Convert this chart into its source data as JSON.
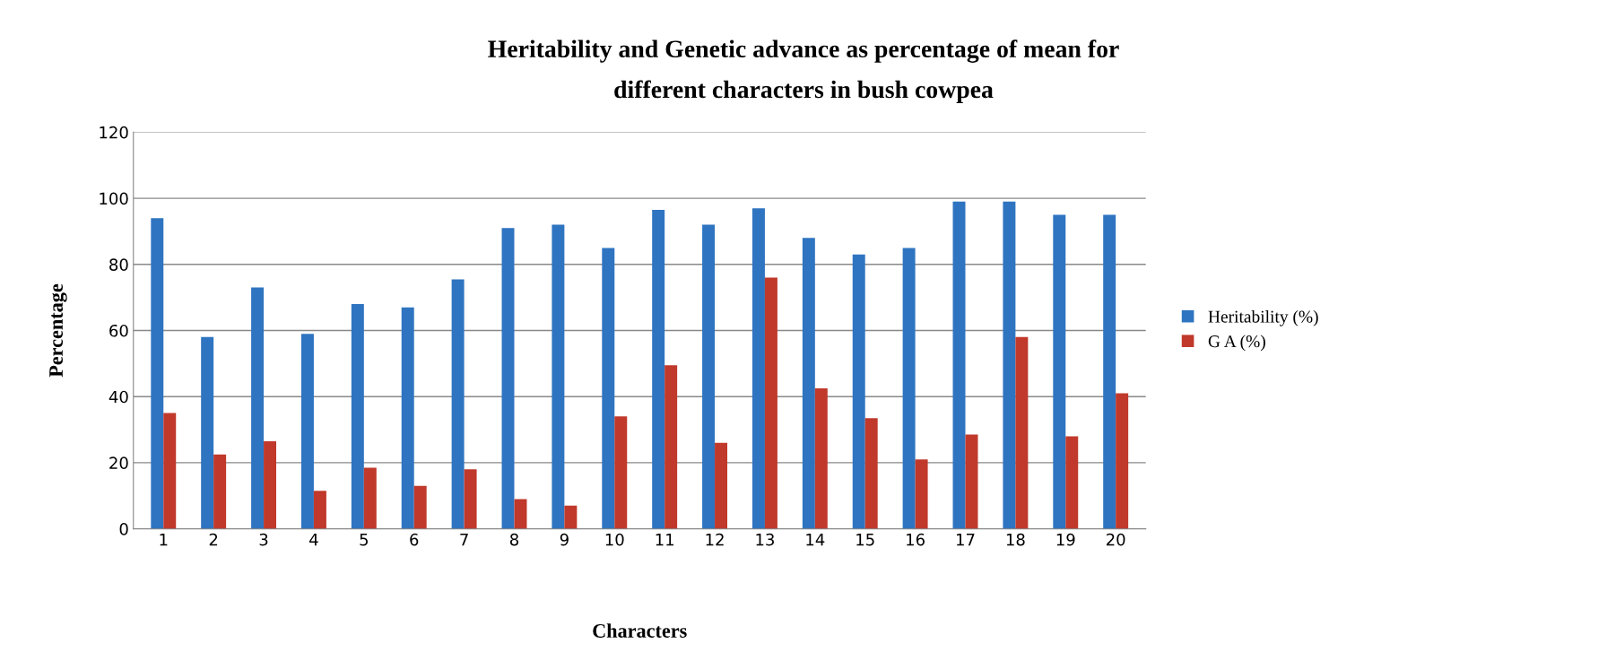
{
  "chart_data": {
    "type": "bar",
    "title": "Heritability and Genetic advance as percentage of mean for\ndifferent characters in bush cowpea",
    "xlabel": "Characters",
    "ylabel": "Percentage",
    "categories": [
      "1",
      "2",
      "3",
      "4",
      "5",
      "6",
      "7",
      "8",
      "9",
      "10",
      "11",
      "12",
      "13",
      "14",
      "15",
      "16",
      "17",
      "18",
      "19",
      "20"
    ],
    "series": [
      {
        "name": "Heritability (%)",
        "color": "#2f74c0",
        "values": [
          94,
          58,
          73,
          59,
          68,
          67,
          75.5,
          91,
          92,
          85,
          96.5,
          92,
          97,
          88,
          83,
          85,
          99,
          99,
          95,
          95
        ]
      },
      {
        "name": "G A (%)",
        "color": "#c0392b",
        "values": [
          35,
          22.5,
          26.5,
          11.5,
          18.5,
          13,
          18,
          9,
          7,
          34,
          49.5,
          26,
          76,
          42.5,
          33.5,
          21,
          28.5,
          58,
          28,
          41
        ]
      }
    ],
    "ylim": [
      0,
      120
    ],
    "yticks": [
      0,
      20,
      40,
      60,
      80,
      100,
      120
    ],
    "grid": "y",
    "legend": "right"
  }
}
